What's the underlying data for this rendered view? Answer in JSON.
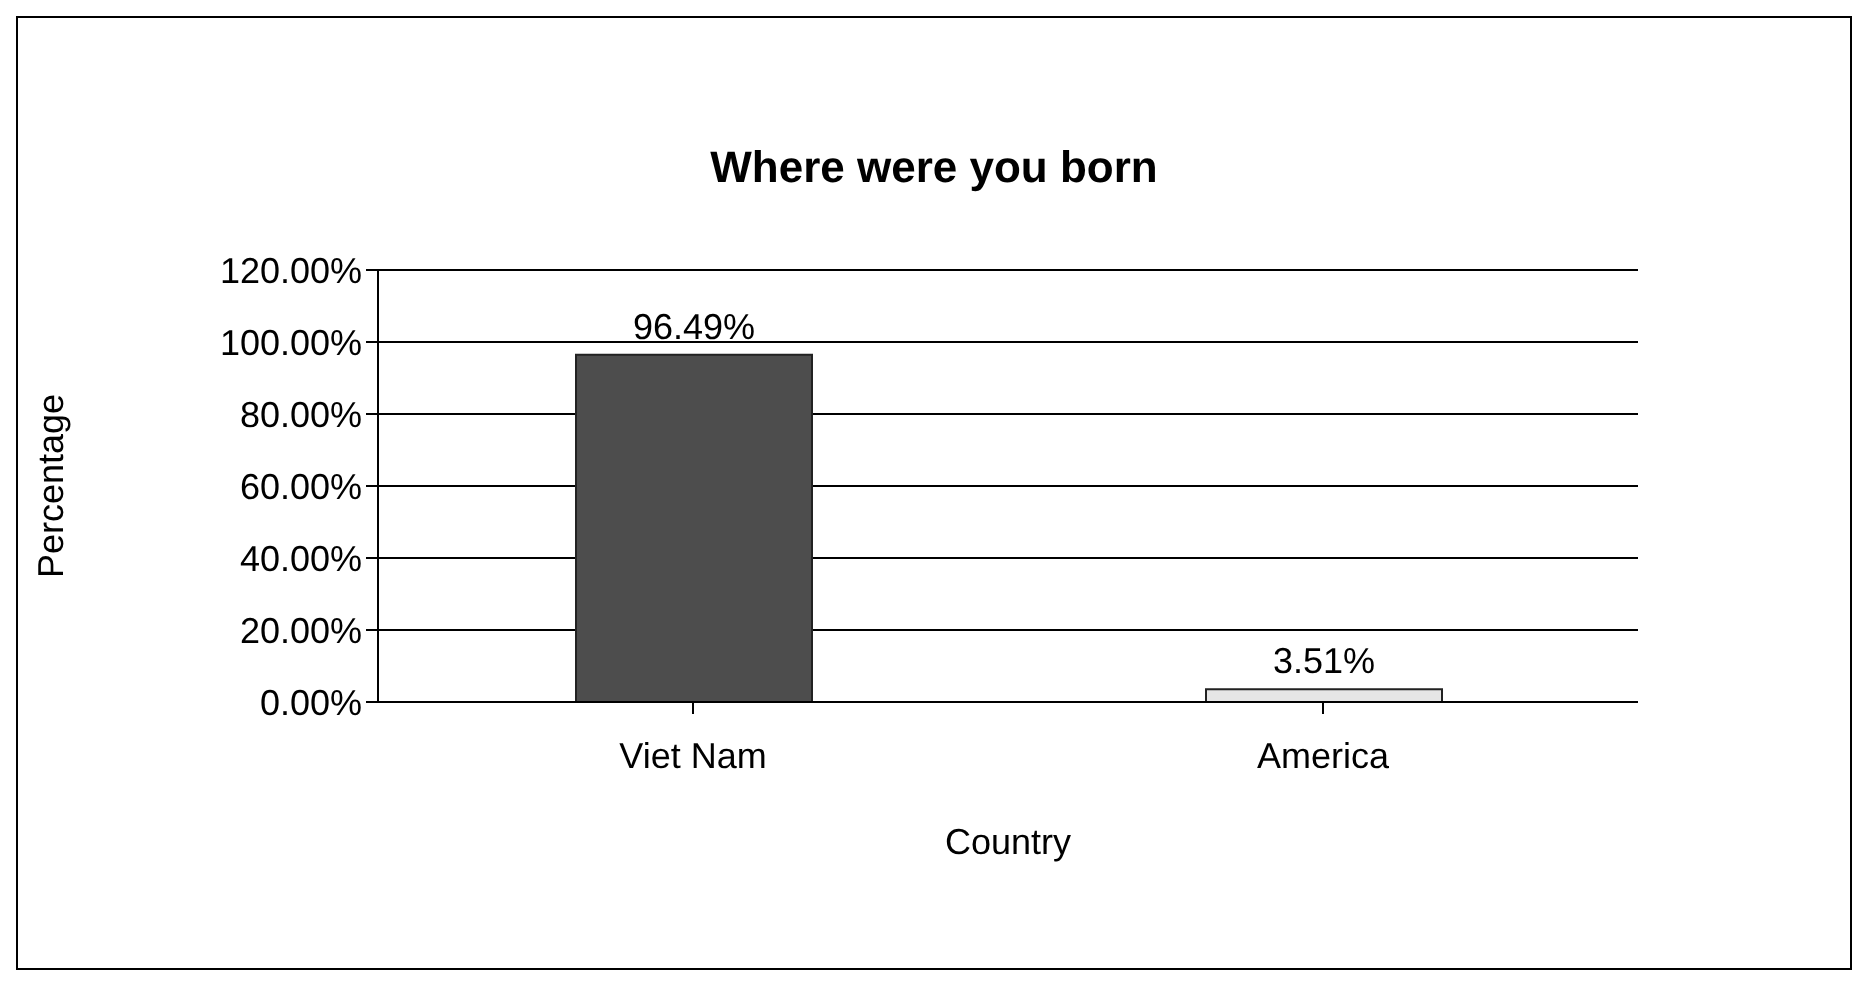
{
  "chart_data": {
    "type": "bar",
    "title": "Where were you born",
    "xlabel": "Country",
    "ylabel": "Percentage",
    "categories": [
      "Viet Nam",
      "America"
    ],
    "values": [
      96.49,
      3.51
    ],
    "colors": [
      "#4d4d4d",
      "#e6e6e6"
    ],
    "value_labels": [
      "96.49%",
      "3.51%"
    ],
    "ylim": [
      0,
      120
    ],
    "yticks": [
      {
        "value": 0,
        "label": "0.00%"
      },
      {
        "value": 20,
        "label": "20.00%"
      },
      {
        "value": 40,
        "label": "40.00%"
      },
      {
        "value": 60,
        "label": "60.00%"
      },
      {
        "value": 80,
        "label": "80.00%"
      },
      {
        "value": 100,
        "label": "100.00%"
      },
      {
        "value": 120,
        "label": "120.00%"
      }
    ],
    "grid": "y",
    "legend": false
  }
}
